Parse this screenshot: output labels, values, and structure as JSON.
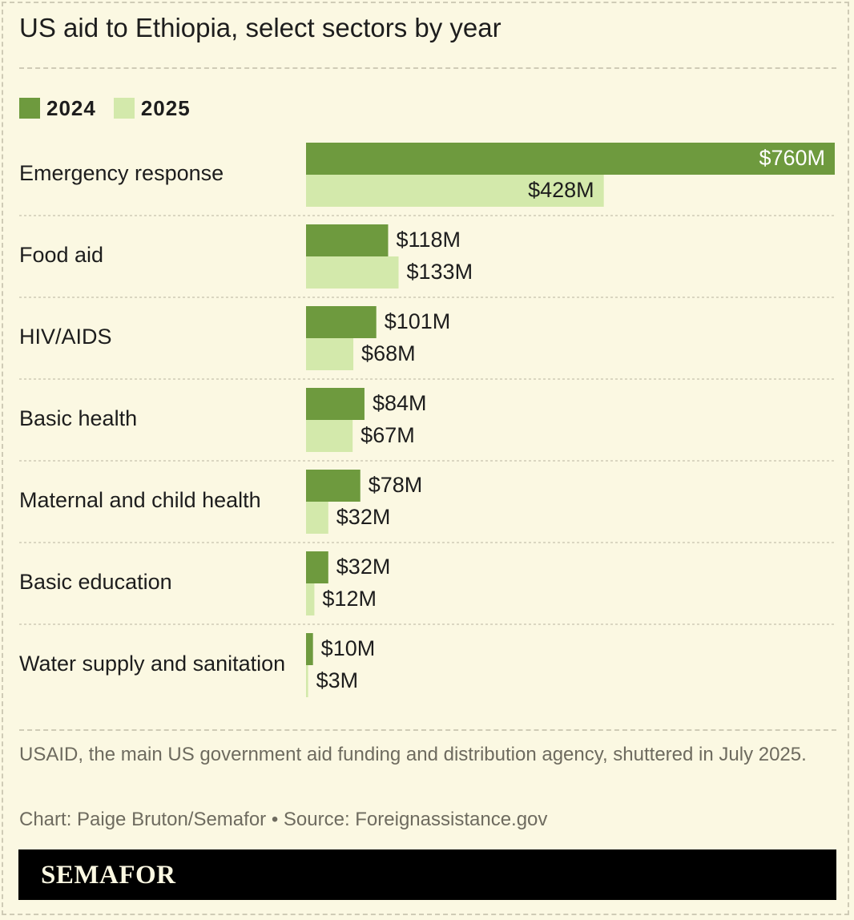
{
  "title": "US aid to Ethiopia, select sectors by year",
  "legend": {
    "items": [
      {
        "label": "2024",
        "color": "#6e9a3e"
      },
      {
        "label": "2025",
        "color": "#d3e9ab"
      }
    ]
  },
  "chart_data": {
    "type": "bar",
    "orientation": "horizontal",
    "categories": [
      "Emergency response",
      "Food aid",
      "HIV/AIDS",
      "Basic health",
      "Maternal and child health",
      "Basic education",
      "Water supply and sanitation"
    ],
    "series": [
      {
        "name": "2024",
        "values": [
          760,
          118,
          101,
          84,
          78,
          32,
          10
        ],
        "labels": [
          "$760M",
          "$118M",
          "$101M",
          "$84M",
          "$78M",
          "$32M",
          "$10M"
        ],
        "color": "#6e9a3e"
      },
      {
        "name": "2025",
        "values": [
          428,
          133,
          68,
          67,
          32,
          12,
          3
        ],
        "labels": [
          "$428M",
          "$133M",
          "$68M",
          "$67M",
          "$32M",
          "$12M",
          "$3M"
        ],
        "color": "#d3e9ab"
      }
    ],
    "unit": "$M",
    "xlim": [
      0,
      760
    ],
    "grid": false,
    "legend_position": "top-left"
  },
  "note": "USAID, the main US government aid funding and distribution agency, shuttered in July 2025.",
  "credit": "Chart: Paige Bruton/Semafor • Source: Foreignassistance.gov",
  "footer": {
    "brand": "SEMAFOR"
  }
}
